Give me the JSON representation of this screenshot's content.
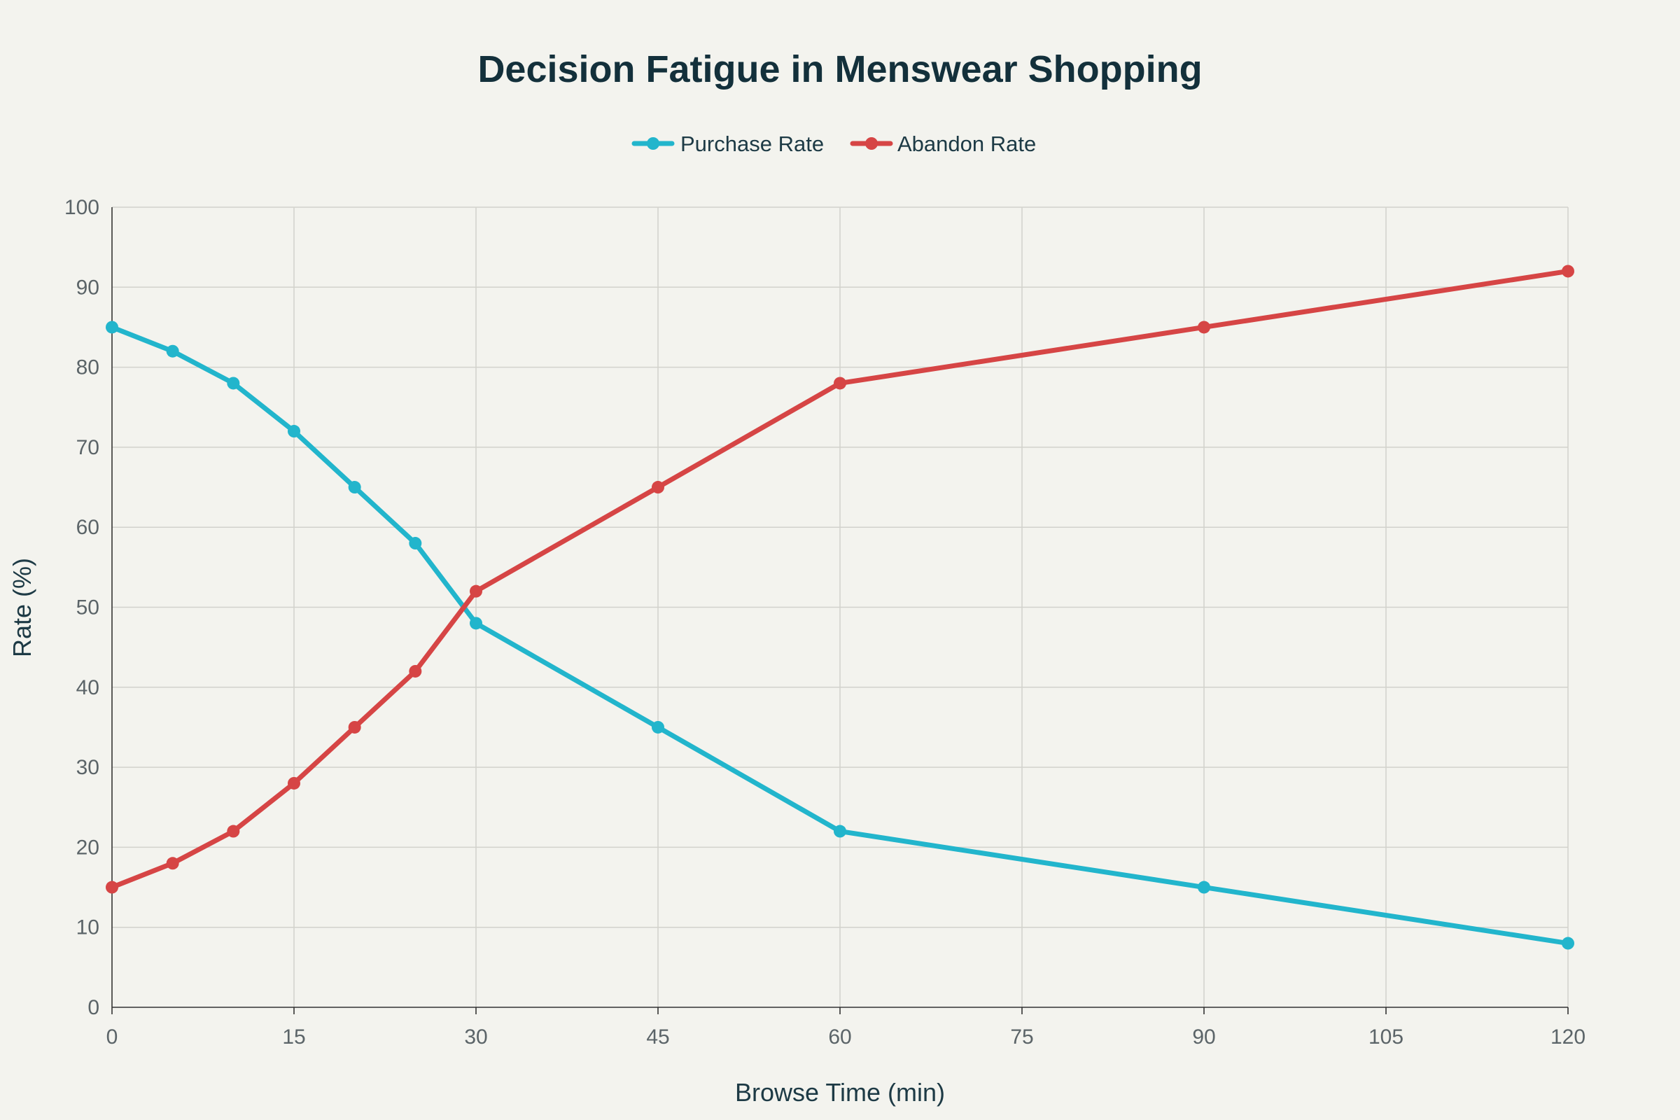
{
  "chart_data": {
    "type": "line",
    "title": "Decision Fatigue in Menswear Shopping",
    "xlabel": "Browse Time (min)",
    "ylabel": "Rate (%)",
    "xlim": [
      0,
      120
    ],
    "ylim": [
      0,
      100
    ],
    "x_ticks": [
      0,
      15,
      30,
      45,
      60,
      75,
      90,
      105,
      120
    ],
    "y_ticks": [
      0,
      10,
      20,
      30,
      40,
      50,
      60,
      70,
      80,
      90,
      100
    ],
    "grid": true,
    "legend_position": "top-center",
    "x": [
      0,
      5,
      10,
      15,
      20,
      25,
      30,
      45,
      60,
      90,
      120
    ],
    "series": [
      {
        "name": "Purchase Rate",
        "color": "#22b5cc",
        "values": [
          85,
          82,
          78,
          72,
          65,
          58,
          48,
          35,
          22,
          15,
          8
        ]
      },
      {
        "name": "Abandon Rate",
        "color": "#d64545",
        "values": [
          15,
          18,
          22,
          28,
          35,
          42,
          52,
          65,
          78,
          85,
          92
        ]
      }
    ]
  }
}
